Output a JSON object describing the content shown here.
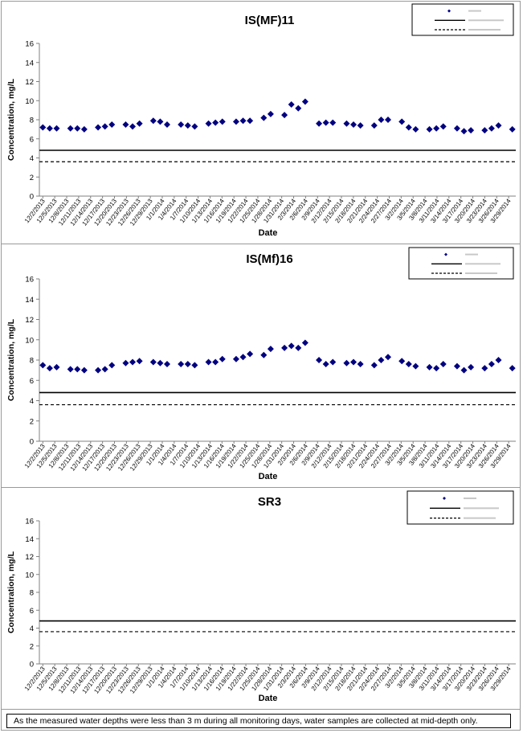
{
  "chart_data": [
    {
      "type": "scatter",
      "title": "IS(MF)11",
      "xlabel": "Date",
      "ylabel": "Concentration, mg/L",
      "ylim": [
        0,
        16
      ],
      "yticks": [
        0,
        2,
        4,
        6,
        8,
        10,
        12,
        14,
        16
      ],
      "grid": false,
      "legend_position": "top-right",
      "x_tick_labels": [
        "12/2/2013",
        "12/5/2013",
        "12/8/2013",
        "12/11/2013",
        "12/14/2013",
        "12/17/2013",
        "12/20/2013",
        "12/23/2013",
        "12/26/2013",
        "12/29/2013",
        "1/1/2014",
        "1/4/2014",
        "1/7/2014",
        "1/10/2014",
        "1/13/2014",
        "1/16/2014",
        "1/19/2014",
        "1/22/2014",
        "1/25/2014",
        "1/28/2014",
        "1/31/2014",
        "2/3/2014",
        "2/6/2014",
        "2/9/2014",
        "2/12/2014",
        "2/15/2014",
        "2/18/2014",
        "2/21/2014",
        "2/24/2014",
        "2/27/2014",
        "3/2/2014",
        "3/5/2014",
        "3/8/2014",
        "3/11/2014",
        "3/14/2014",
        "3/17/2014",
        "3/20/2014",
        "3/23/2014",
        "3/26/2014",
        "3/29/2014"
      ],
      "points": [
        [
          0,
          7.2
        ],
        [
          1,
          7.1
        ],
        [
          2,
          7.1
        ],
        [
          4,
          7.1
        ],
        [
          5,
          7.1
        ],
        [
          6,
          7.0
        ],
        [
          8,
          7.2
        ],
        [
          9,
          7.3
        ],
        [
          10,
          7.5
        ],
        [
          12,
          7.5
        ],
        [
          13,
          7.3
        ],
        [
          14,
          7.6
        ],
        [
          16,
          7.9
        ],
        [
          17,
          7.8
        ],
        [
          18,
          7.5
        ],
        [
          20,
          7.5
        ],
        [
          21,
          7.4
        ],
        [
          22,
          7.3
        ],
        [
          24,
          7.6
        ],
        [
          25,
          7.7
        ],
        [
          26,
          7.8
        ],
        [
          28,
          7.8
        ],
        [
          29,
          7.9
        ],
        [
          30,
          7.9
        ],
        [
          32,
          8.2
        ],
        [
          33,
          8.6
        ],
        [
          35,
          8.5
        ],
        [
          36,
          9.6
        ],
        [
          37,
          9.2
        ],
        [
          38,
          9.9
        ],
        [
          40,
          7.6
        ],
        [
          41,
          7.7
        ],
        [
          42,
          7.7
        ],
        [
          44,
          7.6
        ],
        [
          45,
          7.5
        ],
        [
          46,
          7.4
        ],
        [
          48,
          7.4
        ],
        [
          49,
          8.0
        ],
        [
          50,
          8.0
        ],
        [
          52,
          7.8
        ],
        [
          53,
          7.2
        ],
        [
          54,
          7.0
        ],
        [
          56,
          7.0
        ],
        [
          57,
          7.1
        ],
        [
          58,
          7.3
        ],
        [
          60,
          7.1
        ],
        [
          61,
          6.8
        ],
        [
          62,
          6.9
        ],
        [
          64,
          6.9
        ],
        [
          65,
          7.1
        ],
        [
          66,
          7.4
        ],
        [
          68,
          7.0
        ]
      ],
      "reference_lines": [
        {
          "name": "",
          "value": 4.8,
          "style": "solid"
        },
        {
          "name": "",
          "value": 3.6,
          "style": "dashed"
        }
      ],
      "color": "#000080"
    },
    {
      "type": "scatter",
      "title": "IS(Mf)16",
      "xlabel": "Date",
      "ylabel": "Concentration, mg/L",
      "ylim": [
        0,
        16
      ],
      "yticks": [
        0,
        2,
        4,
        6,
        8,
        10,
        12,
        14,
        16
      ],
      "grid": false,
      "legend_position": "top-right",
      "x_tick_labels": [
        "12/2/2013",
        "12/5/2013",
        "12/8/2013",
        "12/11/2013",
        "12/14/2013",
        "12/17/2013",
        "12/20/2013",
        "12/23/2013",
        "12/26/2013",
        "12/29/2013",
        "1/1/2014",
        "1/4/2014",
        "1/7/2014",
        "1/10/2014",
        "1/13/2014",
        "1/16/2014",
        "1/19/2014",
        "1/22/2014",
        "1/25/2014",
        "1/28/2014",
        "1/31/2014",
        "2/3/2014",
        "2/6/2014",
        "2/9/2014",
        "2/12/2014",
        "2/15/2014",
        "2/18/2014",
        "2/21/2014",
        "2/24/2014",
        "2/27/2014",
        "3/2/2014",
        "3/5/2014",
        "3/8/2014",
        "3/11/2014",
        "3/14/2014",
        "3/17/2014",
        "3/20/2014",
        "3/23/2014",
        "3/26/2014",
        "3/29/2014"
      ],
      "points": [
        [
          0,
          7.5
        ],
        [
          1,
          7.2
        ],
        [
          2,
          7.3
        ],
        [
          4,
          7.1
        ],
        [
          5,
          7.1
        ],
        [
          6,
          7.0
        ],
        [
          8,
          7.0
        ],
        [
          9,
          7.1
        ],
        [
          10,
          7.5
        ],
        [
          12,
          7.7
        ],
        [
          13,
          7.8
        ],
        [
          14,
          7.9
        ],
        [
          16,
          7.8
        ],
        [
          17,
          7.7
        ],
        [
          18,
          7.6
        ],
        [
          20,
          7.6
        ],
        [
          21,
          7.6
        ],
        [
          22,
          7.5
        ],
        [
          24,
          7.8
        ],
        [
          25,
          7.8
        ],
        [
          26,
          8.1
        ],
        [
          28,
          8.1
        ],
        [
          29,
          8.3
        ],
        [
          30,
          8.6
        ],
        [
          32,
          8.5
        ],
        [
          33,
          9.1
        ],
        [
          35,
          9.2
        ],
        [
          36,
          9.4
        ],
        [
          37,
          9.2
        ],
        [
          38,
          9.7
        ],
        [
          40,
          8.0
        ],
        [
          41,
          7.6
        ],
        [
          42,
          7.8
        ],
        [
          44,
          7.7
        ],
        [
          45,
          7.8
        ],
        [
          46,
          7.6
        ],
        [
          48,
          7.5
        ],
        [
          49,
          8.0
        ],
        [
          50,
          8.3
        ],
        [
          52,
          7.9
        ],
        [
          53,
          7.6
        ],
        [
          54,
          7.4
        ],
        [
          56,
          7.3
        ],
        [
          57,
          7.2
        ],
        [
          58,
          7.6
        ],
        [
          60,
          7.4
        ],
        [
          61,
          7.0
        ],
        [
          62,
          7.3
        ],
        [
          64,
          7.2
        ],
        [
          65,
          7.6
        ],
        [
          66,
          8.0
        ],
        [
          68,
          7.2
        ]
      ],
      "reference_lines": [
        {
          "name": "",
          "value": 4.8,
          "style": "solid"
        },
        {
          "name": "",
          "value": 3.6,
          "style": "dashed"
        }
      ],
      "color": "#000080"
    },
    {
      "type": "scatter",
      "title": "SR3",
      "xlabel": "Date",
      "ylabel": "Concentration, mg/L",
      "ylim": [
        0,
        16
      ],
      "yticks": [
        0,
        2,
        4,
        6,
        8,
        10,
        12,
        14,
        16
      ],
      "grid": false,
      "legend_position": "top-right",
      "x_tick_labels": [
        "12/2/2013",
        "12/5/2013",
        "12/8/2013",
        "12/11/2013",
        "12/14/2013",
        "12/17/2013",
        "12/20/2013",
        "12/23/2013",
        "12/26/2013",
        "12/29/2013",
        "1/1/2014",
        "1/4/2014",
        "1/7/2014",
        "1/10/2014",
        "1/13/2014",
        "1/16/2014",
        "1/19/2014",
        "1/22/2014",
        "1/25/2014",
        "1/28/2014",
        "1/31/2014",
        "2/3/2014",
        "2/6/2014",
        "2/9/2014",
        "2/12/2014",
        "2/15/2014",
        "2/18/2014",
        "2/21/2014",
        "2/24/2014",
        "2/27/2014",
        "3/2/2014",
        "3/5/2014",
        "3/8/2014",
        "3/11/2014",
        "3/14/2014",
        "3/17/2014",
        "3/20/2014",
        "3/23/2014",
        "3/26/2014",
        "3/29/2014"
      ],
      "points": [],
      "reference_lines": [
        {
          "name": "",
          "value": 4.8,
          "style": "solid"
        },
        {
          "name": "",
          "value": 3.6,
          "style": "dashed"
        }
      ],
      "color": "#000080"
    }
  ],
  "footnote": "As the measured water depths were less than 3 m during all monitoring days, water samples are collected  at mid-depth only."
}
